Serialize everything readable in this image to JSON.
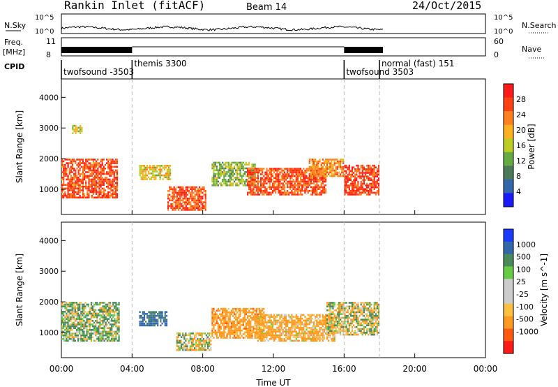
{
  "header": {
    "title": "Rankin Inlet (fitACF)",
    "beam": "Beam 14",
    "date": "24/Oct/2015"
  },
  "top_panels": {
    "nsky_label": "N.Sky",
    "nsearch_label": "N.Search",
    "power_axis_top": "10^5",
    "power_axis_bottom": "10^0",
    "freq_label_line1": "Freq.",
    "freq_label_line2": "[MHz]",
    "freq_top": "11",
    "freq_bottom": "8",
    "nave_label": "Nave",
    "nave_top": "60",
    "nave_bottom": "0",
    "cpid_label": "CPID"
  },
  "cpid_segments": [
    {
      "label": "twofsound -3503",
      "start_hour": 0.0
    },
    {
      "label": "themis 3300",
      "start_hour": 4.0
    },
    {
      "label": "twofsound 3503",
      "start_hour": 16.0
    },
    {
      "label": "normal (fast) 151",
      "start_hour": 18.0
    }
  ],
  "colors": {
    "power_scale": [
      "#1a1aff",
      "#3366aa",
      "#4a7a5a",
      "#66aa44",
      "#bbcc22",
      "#ffb020",
      "#ff8020",
      "#ff4010",
      "#ff1a1a"
    ],
    "velocity_scale": [
      "#ff1a1a",
      "#ff5a10",
      "#ff9a20",
      "#ffc040",
      "#cccccc",
      "#cccccc",
      "#66cc44",
      "#4a8a5a",
      "#3366aa",
      "#1a3aff"
    ]
  },
  "chart_data": [
    {
      "type": "heatmap",
      "name": "power",
      "xlabel": "",
      "ylabel": "Slant Range [km]",
      "colorbar_label": "Power [dB]",
      "colorbar_ticks": [
        "28",
        "24",
        "20",
        "16",
        "12",
        "8",
        "4"
      ],
      "colorbar_range": [
        0,
        32
      ],
      "x": [
        "00:00",
        "04:00",
        "08:00",
        "12:00",
        "16:00",
        "20:00",
        "00:00"
      ],
      "xlim_hours": [
        0,
        24
      ],
      "yticks": [
        "4000",
        "3000",
        "2000",
        "1000"
      ],
      "ylim": [
        180,
        4600
      ],
      "echo_regions": [
        {
          "t_start": 0.0,
          "t_end": 3.2,
          "r_min": 700,
          "r_max": 2000,
          "power": 26
        },
        {
          "t_start": 0.6,
          "t_end": 1.2,
          "r_min": 2800,
          "r_max": 3100,
          "power": 16
        },
        {
          "t_start": 4.4,
          "t_end": 6.2,
          "r_min": 1300,
          "r_max": 1800,
          "power": 18
        },
        {
          "t_start": 6.0,
          "t_end": 8.2,
          "r_min": 300,
          "r_max": 1100,
          "power": 26
        },
        {
          "t_start": 8.5,
          "t_end": 11.0,
          "r_min": 1100,
          "r_max": 1900,
          "power": 14
        },
        {
          "t_start": 10.5,
          "t_end": 15.0,
          "r_min": 800,
          "r_max": 1700,
          "power": 26
        },
        {
          "t_start": 14.0,
          "t_end": 16.0,
          "r_min": 1400,
          "r_max": 2000,
          "power": 22
        },
        {
          "t_start": 16.0,
          "t_end": 18.0,
          "r_min": 800,
          "r_max": 1800,
          "power": 27
        }
      ]
    },
    {
      "type": "heatmap",
      "name": "velocity",
      "xlabel": "Time UT",
      "ylabel": "Slant Range [km]",
      "colorbar_label": "Velocity [m s^-1]",
      "colorbar_ticks": [
        "1000",
        "500",
        "100",
        "25",
        "-25",
        "-100",
        "-500",
        "-1000"
      ],
      "x": [
        "00:00",
        "04:00",
        "08:00",
        "12:00",
        "16:00",
        "20:00",
        "00:00"
      ],
      "xlim_hours": [
        0,
        24
      ],
      "yticks": [
        "4000",
        "3000",
        "2000",
        "1000"
      ],
      "ylim": [
        180,
        4600
      ],
      "echo_regions": [
        {
          "t_start": 0.0,
          "t_end": 3.3,
          "r_min": 700,
          "r_max": 2000,
          "velocity": 100
        },
        {
          "t_start": 4.4,
          "t_end": 6.0,
          "r_min": 1200,
          "r_max": 1700,
          "velocity": 600
        },
        {
          "t_start": 6.5,
          "t_end": 8.5,
          "r_min": 400,
          "r_max": 1000,
          "velocity": 0
        },
        {
          "t_start": 8.5,
          "t_end": 11.5,
          "r_min": 800,
          "r_max": 1800,
          "velocity": -300
        },
        {
          "t_start": 11.0,
          "t_end": 15.5,
          "r_min": 700,
          "r_max": 1600,
          "velocity": -200
        },
        {
          "t_start": 15.0,
          "t_end": 18.0,
          "r_min": 900,
          "r_max": 2000,
          "velocity": 0
        }
      ]
    }
  ]
}
